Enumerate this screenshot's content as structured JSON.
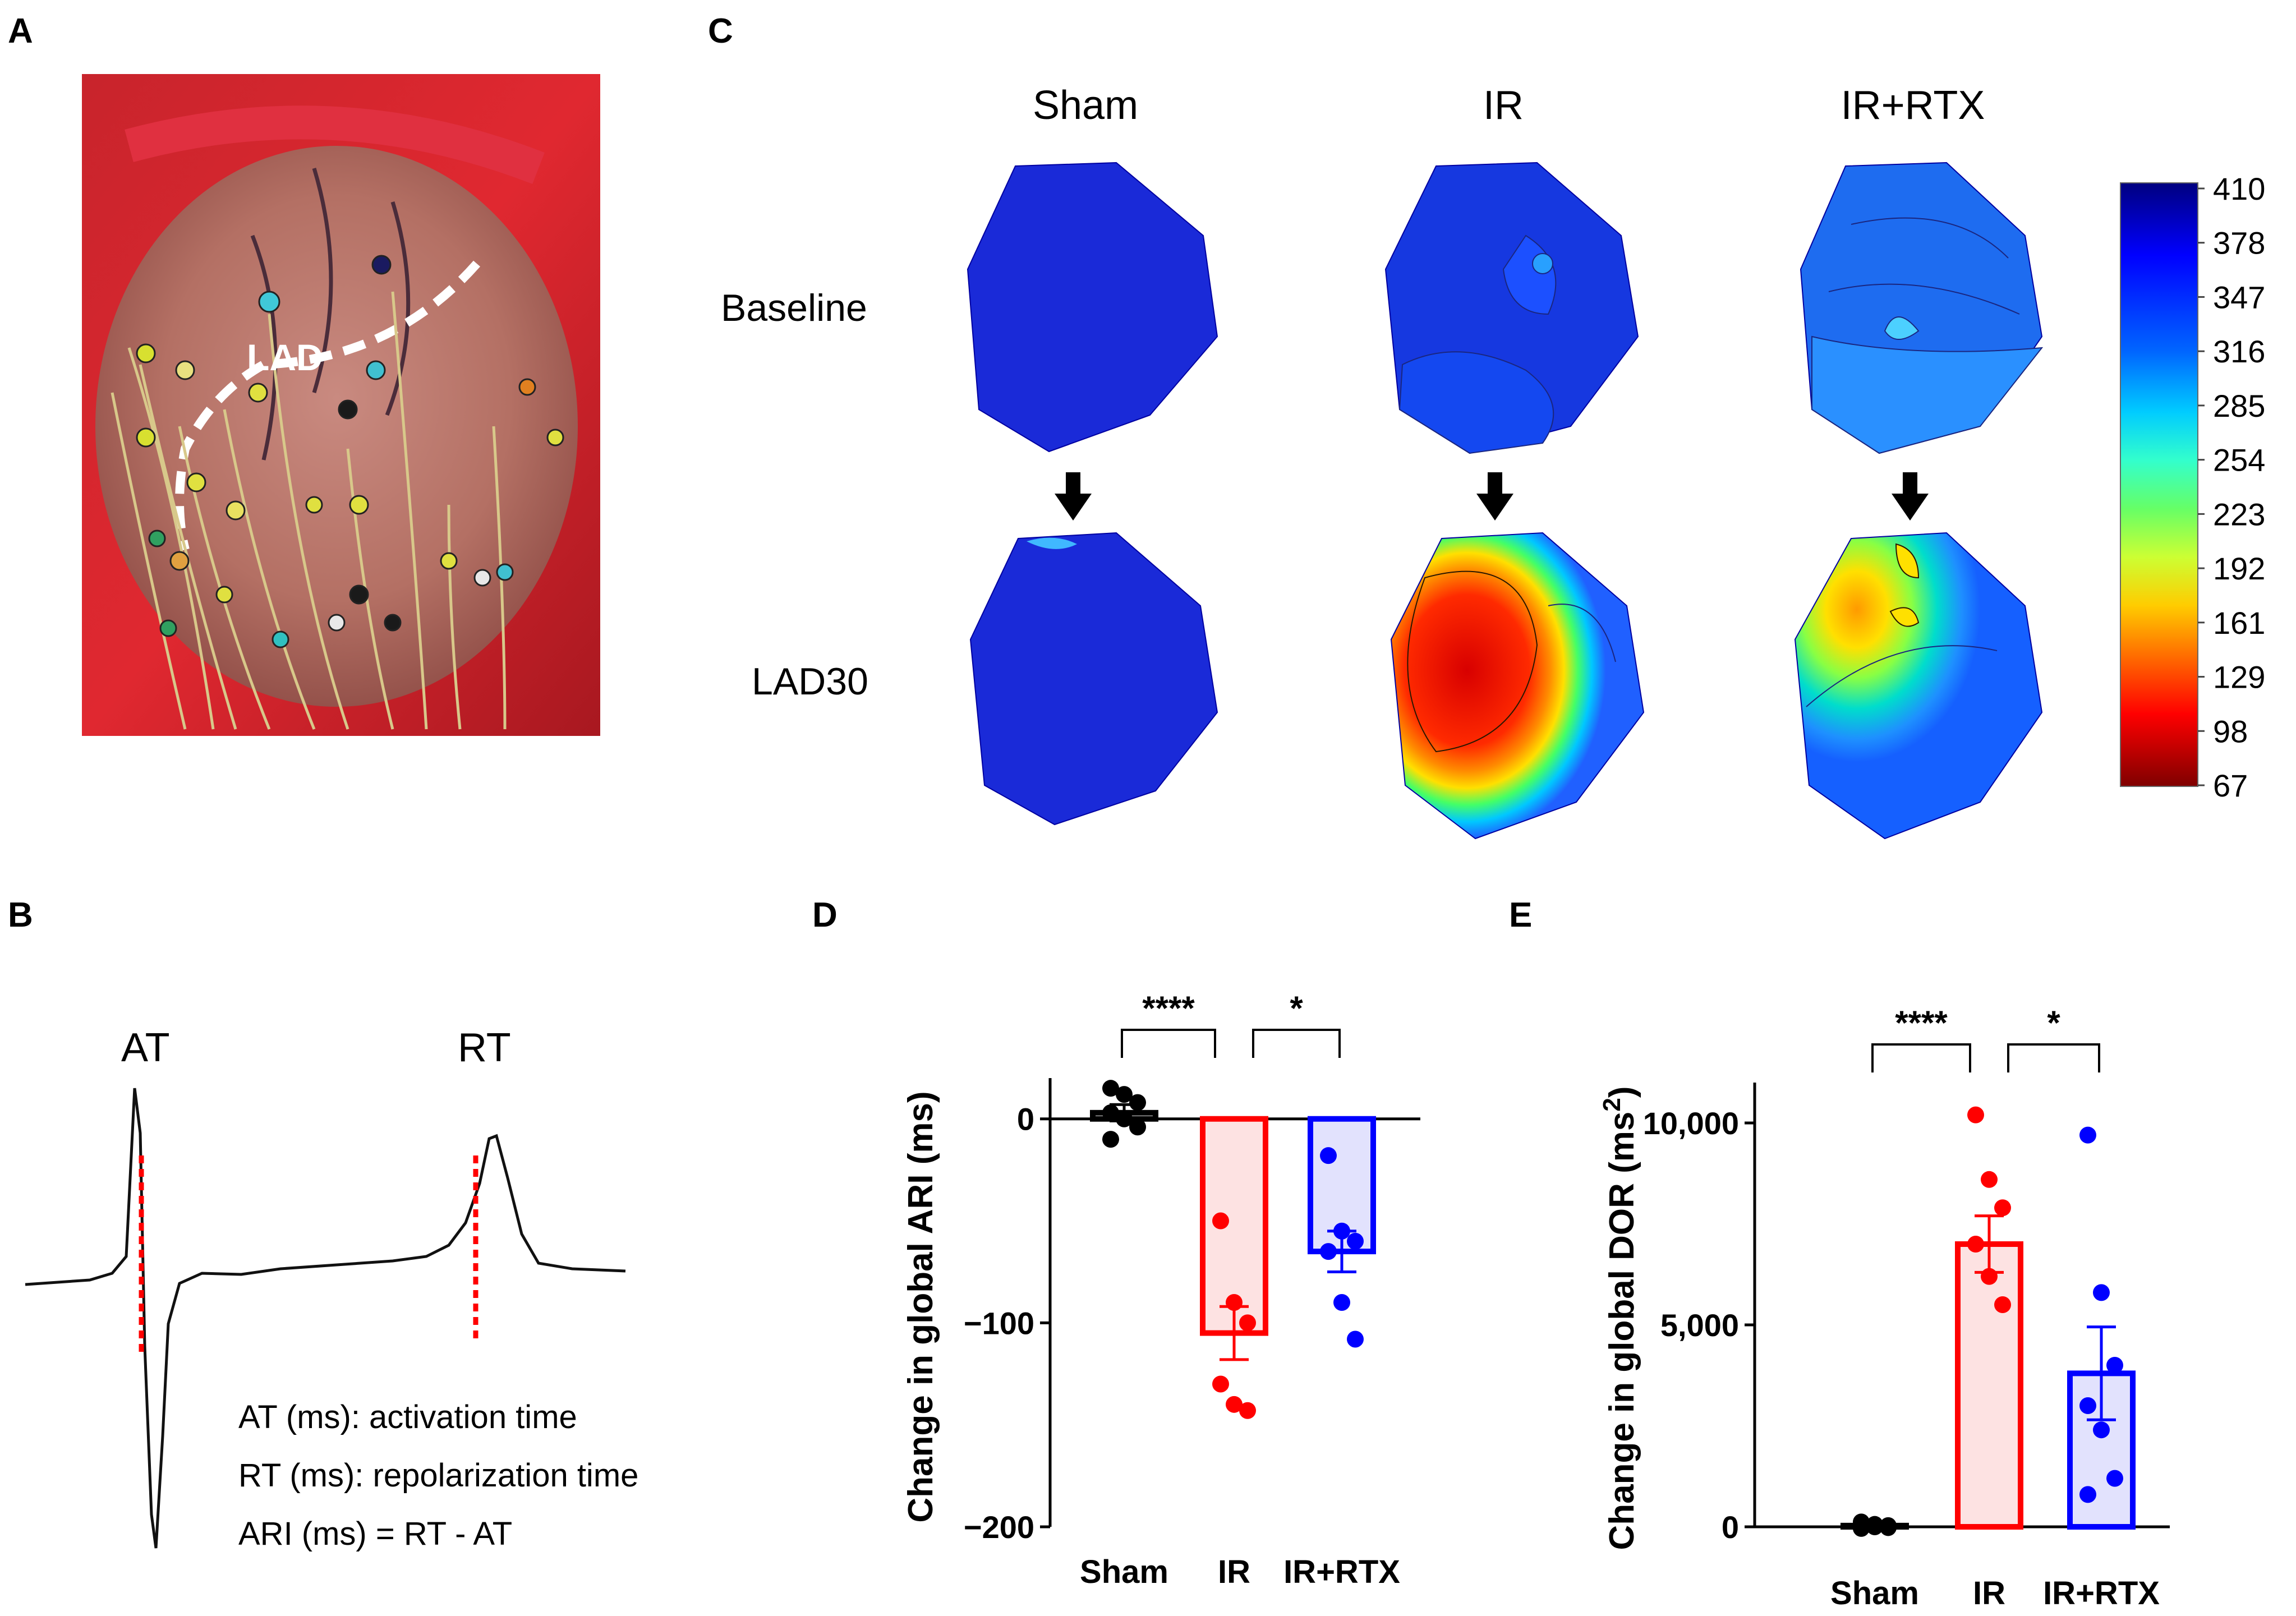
{
  "panels": {
    "A": {
      "letter": "A",
      "vessel_label": "LAD"
    },
    "B": {
      "letter": "B",
      "at_label": "AT",
      "rt_label": "RT",
      "legend": [
        "AT (ms): activation time",
        "RT (ms): repolarization time",
        "ARI (ms) = RT - AT"
      ]
    },
    "C": {
      "letter": "C",
      "groups": [
        "Sham",
        "IR",
        "IR+RTX"
      ],
      "rows": [
        "Baseline",
        "LAD30"
      ],
      "colorbar": {
        "ticks": [
          "410",
          "378",
          "347",
          "316",
          "285",
          "254",
          "223",
          "192",
          "161",
          "129",
          "98",
          "67"
        ],
        "colors": [
          "#00007f",
          "#0000ff",
          "#0066ff",
          "#00ccff",
          "#33ffcc",
          "#66ff66",
          "#ccff33",
          "#ffcc00",
          "#ff6600",
          "#ff0000",
          "#cc0000",
          "#7f0000"
        ]
      }
    }
  },
  "chart_data": [
    {
      "panel": "D",
      "type": "bar",
      "ylabel": "Change in global ARI (ms)",
      "ylim": [
        -200,
        20
      ],
      "yticks": [
        "0",
        "−100",
        "−200"
      ],
      "yticks_values": [
        0,
        -100,
        -200
      ],
      "categories": [
        "Sham",
        "IR",
        "IR+RTX"
      ],
      "values": [
        3,
        -105,
        -65
      ],
      "sem": [
        4,
        13,
        10
      ],
      "colors": [
        "#000000",
        "#ff0000",
        "#0000ff"
      ],
      "fills": [
        "none",
        "#fde2e2",
        "#e2e2fd"
      ],
      "points": [
        [
          15,
          12,
          8,
          3,
          0,
          -4,
          -10
        ],
        [
          -50,
          -90,
          -100,
          -130,
          -140,
          -143
        ],
        [
          -18,
          -55,
          -60,
          -65,
          -90,
          -108
        ]
      ],
      "significance": [
        {
          "from": 0,
          "to": 1,
          "label": "****"
        },
        {
          "from": 1,
          "to": 2,
          "label": "*"
        }
      ]
    },
    {
      "panel": "E",
      "type": "bar",
      "ylabel_main": "Change in global DOR (ms",
      "ylabel_sup": "2",
      "ylabel_end": ")",
      "ylim": [
        0,
        11000
      ],
      "yticks": [
        "0",
        "5,000",
        "10,000"
      ],
      "yticks_values": [
        0,
        5000,
        10000
      ],
      "categories": [
        "Sham",
        "IR",
        "IR+RTX"
      ],
      "values": [
        30,
        7000,
        3800
      ],
      "sem": [
        30,
        700,
        1150
      ],
      "colors": [
        "#000000",
        "#ff0000",
        "#0000ff"
      ],
      "fills": [
        "none",
        "#fde2e2",
        "#e2e2fd"
      ],
      "points": [
        [
          120,
          60,
          30,
          10,
          0,
          -20,
          -40
        ],
        [
          10200,
          8600,
          7900,
          7000,
          6200,
          5500
        ],
        [
          9700,
          5800,
          4000,
          3000,
          2400,
          1200,
          800
        ]
      ],
      "significance": [
        {
          "from": 0,
          "to": 1,
          "label": "****"
        },
        {
          "from": 1,
          "to": 2,
          "label": "*"
        }
      ]
    }
  ]
}
